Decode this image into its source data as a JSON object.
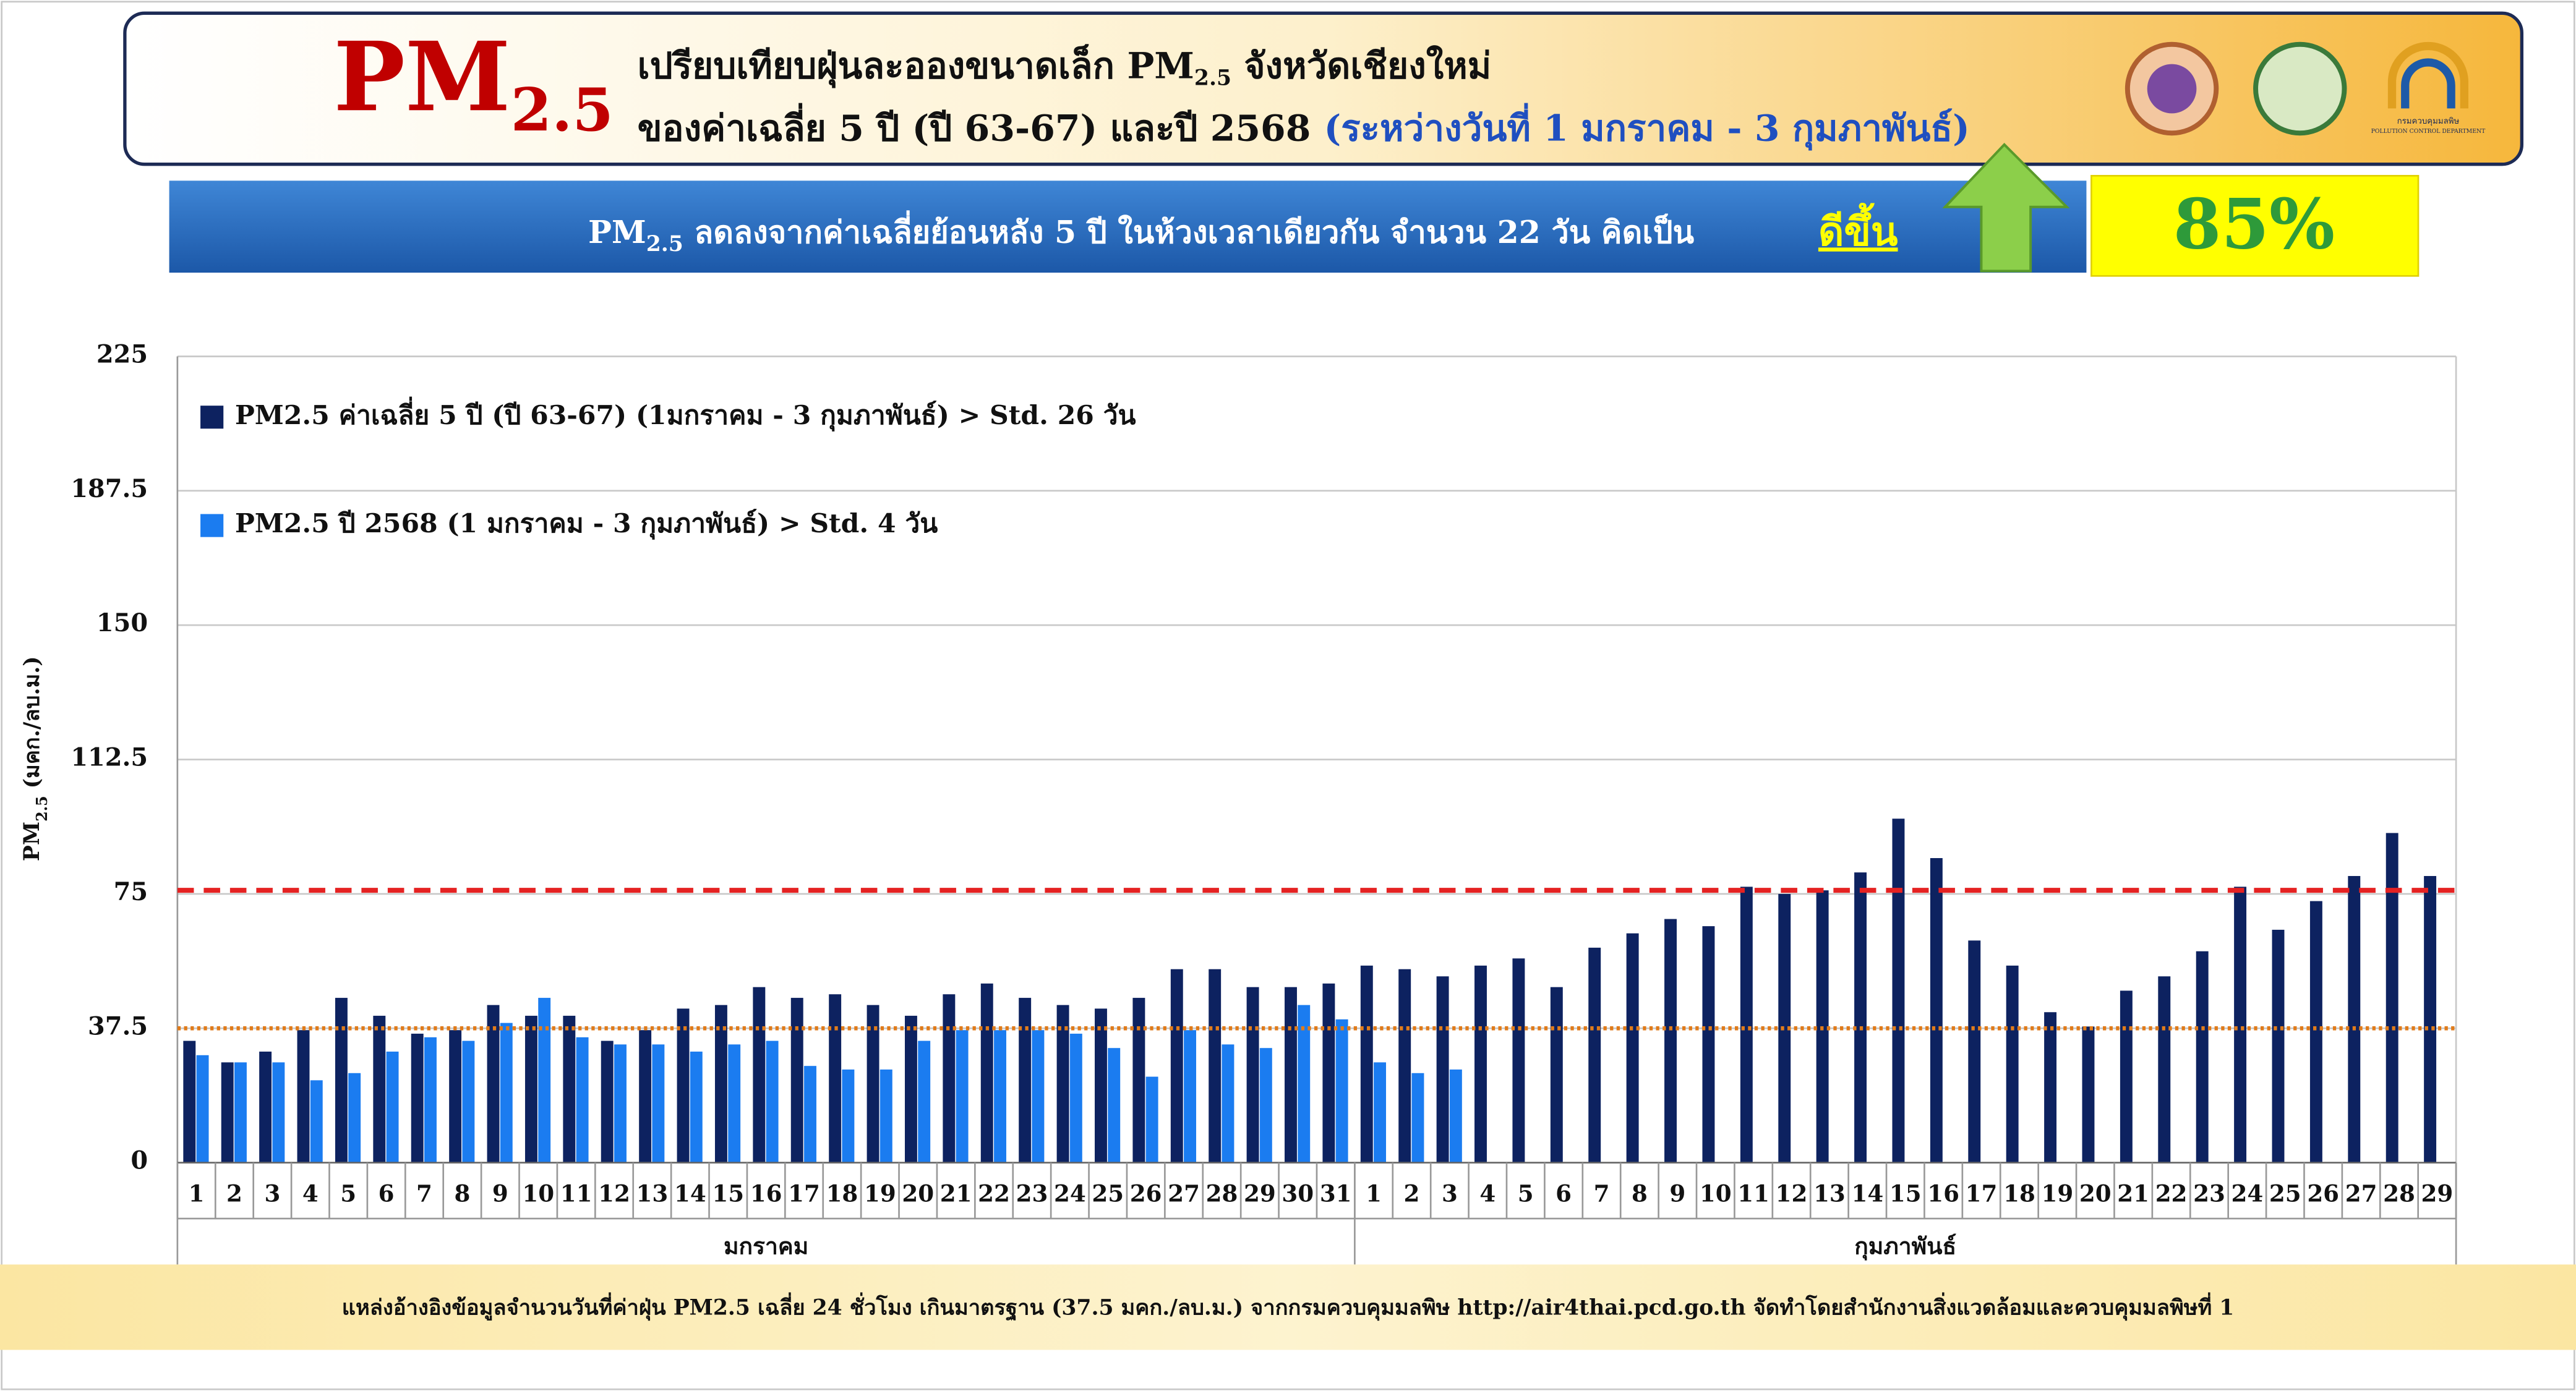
{
  "header": {
    "logo_main": "PM",
    "logo_sub": "2.5",
    "title_line1": [
      "เปรียบเทียบฝุ่นละอองขนาดเล็ก PM",
      "2.5",
      " จังหวัดเชียงใหม่"
    ],
    "title_line2": "ของค่าเฉลี่ย 5 ปี (ปี 63-67) และปี 2568",
    "title_line2_period": "(ระหว่างวันที่ 1 มกราคม - 3 กุมภาพันธ์)",
    "agency_text": "กรมควบคุมมลพิษ",
    "agency_text_en": "POLLUTION CONTROL DEPARTMENT"
  },
  "banner": {
    "text": [
      "PM",
      "2.5",
      " ลดลงจากค่าเฉลี่ยย้อนหลัง 5 ปี ในห้วงเวลาเดียวกัน จำนวน 22 วัน คิดเป็น"
    ],
    "highlight": "ดีขึ้น",
    "percent": "85%"
  },
  "chart_data": {
    "type": "bar",
    "y_label": [
      "PM",
      "2.5",
      " (มคก./ลบ.ม.)"
    ],
    "categories": [
      "1",
      "2",
      "3",
      "4",
      "5",
      "6",
      "7",
      "8",
      "9",
      "10",
      "11",
      "12",
      "13",
      "14",
      "15",
      "16",
      "17",
      "18",
      "19",
      "20",
      "21",
      "22",
      "23",
      "24",
      "25",
      "26",
      "27",
      "28",
      "29",
      "30",
      "31",
      "1",
      "2",
      "3",
      "4",
      "5",
      "6",
      "7",
      "8",
      "9",
      "10",
      "11",
      "12",
      "13",
      "14",
      "15",
      "16",
      "17",
      "18",
      "19",
      "20",
      "21",
      "22",
      "23",
      "24",
      "25",
      "26",
      "27",
      "28",
      "29"
    ],
    "months": [
      "มกราคม",
      "มกราคม",
      "มกราคม",
      "มกราคม",
      "มกราคม",
      "มกราคม",
      "มกราคม",
      "มกราคม",
      "มกราคม",
      "มกราคม",
      "มกราคม",
      "มกราคม",
      "มกราคม",
      "มกราคม",
      "มกราคม",
      "มกราคม",
      "มกราคม",
      "มกราคม",
      "มกราคม",
      "มกราคม",
      "มกราคม",
      "มกราคม",
      "มกราคม",
      "มกราคม",
      "มกราคม",
      "มกราคม",
      "มกราคม",
      "มกราคม",
      "มกราคม",
      "มกราคม",
      "มกราคม",
      "กุมภาพันธ์",
      "กุมภาพันธ์",
      "กุมภาพันธ์",
      "กุมภาพันธ์",
      "กุมภาพันธ์",
      "กุมภาพันธ์",
      "กุมภาพันธ์",
      "กุมภาพันธ์",
      "กุมภาพันธ์",
      "กุมภาพันธ์",
      "กุมภาพันธ์",
      "กุมภาพันธ์",
      "กุมภาพันธ์",
      "กุมภาพันธ์",
      "กุมภาพันธ์",
      "กุมภาพันธ์",
      "กุมภาพันธ์",
      "กุมภาพันธ์",
      "กุมภาพันธ์",
      "กุมภาพันธ์",
      "กุมภาพันธ์",
      "กุมภาพันธ์",
      "กุมภาพันธ์",
      "กุมภาพันธ์",
      "กุมภาพันธ์",
      "กุมภาพันธ์",
      "กุมภาพันธ์",
      "กุมภาพันธ์",
      "กุมภาพันธ์"
    ],
    "series": [
      {
        "name": "PM2.5 ค่าเฉลี่ย 5 ปี (ปี 63-67) (1มกราคม - 3 กุมภาพันธ์) > Std. 26 วัน",
        "color": "#0d2260",
        "values": [
          34,
          28,
          31,
          37,
          46,
          41,
          36,
          37,
          44,
          41,
          41,
          34,
          37,
          43,
          44,
          49,
          46,
          47,
          44,
          41,
          47,
          50,
          46,
          44,
          43,
          46,
          54,
          54,
          49,
          49,
          50,
          55,
          54,
          52,
          55,
          57,
          49,
          60,
          64,
          68,
          66,
          77,
          75,
          76,
          81,
          96,
          85,
          62,
          55,
          42,
          38,
          48,
          52,
          59,
          77,
          65,
          73,
          80,
          92,
          80
        ]
      },
      {
        "name": "PM2.5 ปี 2568 (1 มกราคม - 3 กุมภาพันธ์) > Std. 4 วัน",
        "color": "#1b7cf0",
        "values": [
          30,
          28,
          28,
          23,
          25,
          31,
          35,
          34,
          39,
          46,
          35,
          33,
          33,
          31,
          33,
          34,
          27,
          26,
          26,
          34,
          37,
          37,
          37,
          36,
          32,
          24,
          37,
          33,
          32,
          44,
          40,
          28,
          25,
          26,
          null,
          null,
          null,
          null,
          null,
          null,
          null,
          null,
          null,
          null,
          null,
          null,
          null,
          null,
          null,
          null,
          null,
          null,
          null,
          null,
          null,
          null,
          null,
          null,
          null,
          null
        ]
      }
    ],
    "ylim": [
      0,
      225
    ],
    "yticks": [
      0,
      37.5,
      75,
      112.5,
      150,
      187.5,
      225
    ],
    "grid": true,
    "reference_lines": [
      {
        "value": 76,
        "color": "#e52222",
        "style": "dashed"
      },
      {
        "value": 37.5,
        "color": "#e07b1a",
        "style": "dotted"
      }
    ]
  },
  "footer": {
    "source": "แหล่งอ้างอิงข้อมูลจำนวนวันที่ค่าฝุ่น PM2.5 เฉลี่ย 24 ชั่วโมง เกินมาตรฐาน (37.5 มคก./ลบ.ม.) จากกรมควบคุมมลพิษ http://air4thai.pcd.go.th  จัดทำโดยสำนักงานสิ่งแวดล้อมและควบคุมมลพิษที่ 1"
  }
}
